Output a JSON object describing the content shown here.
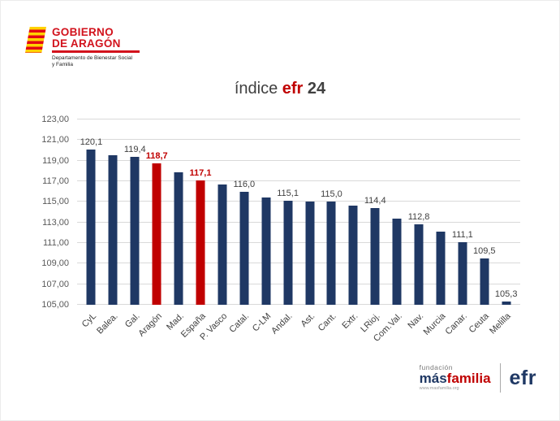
{
  "header_logo": {
    "line1": "GOBIERNO",
    "line2": "DE ARAGÓN",
    "dept_line1": "Departamento de Bienestar Social",
    "dept_line2": "y Familia"
  },
  "title": {
    "prefix": "índice ",
    "brand": "efr",
    "suffix": " 24"
  },
  "chart_data": {
    "type": "bar",
    "title": "índice efr 24",
    "categories": [
      "CyL",
      "Balea.",
      "Gal.",
      "Aragón",
      "Mad.",
      "España",
      "P. Vasco",
      "Catal.",
      "C-LM",
      "Andal.",
      "Ast.",
      "Cant.",
      "Extr.",
      "LRioj.",
      "Com.Val.",
      "Nav.",
      "Murcia",
      "Canar.",
      "Ceuta",
      "Melilla"
    ],
    "values": [
      120.1,
      119.5,
      119.4,
      118.7,
      117.9,
      117.1,
      116.7,
      116.0,
      115.4,
      115.1,
      115.0,
      115.0,
      114.6,
      114.4,
      113.4,
      112.8,
      112.1,
      111.1,
      109.5,
      105.3
    ],
    "bar_labels": [
      "120,1",
      "",
      "119,4",
      "118,7",
      "",
      "117,1",
      "",
      "116,0",
      "",
      "115,1",
      "",
      "115,0",
      "",
      "114,4",
      "",
      "112,8",
      "",
      "111,1",
      "109,5",
      "105,3"
    ],
    "highlight_indices": [
      3,
      5
    ],
    "bar_color": "#1f3864",
    "highlight_color": "#c00000",
    "label_color": "#404040",
    "highlight_label_color": "#c00000",
    "ylim": [
      105,
      123
    ],
    "ytick_step": 2,
    "ytick_labels": [
      "105,00",
      "107,00",
      "109,00",
      "111,00",
      "113,00",
      "115,00",
      "117,00",
      "119,00",
      "121,00",
      "123,00"
    ],
    "grid": true,
    "legend": "none"
  },
  "footer_logo": {
    "foundation": "fundación",
    "brand_a": "más",
    "brand_b": "familia",
    "url": "www.masfamilia.org",
    "efr": "efr"
  }
}
